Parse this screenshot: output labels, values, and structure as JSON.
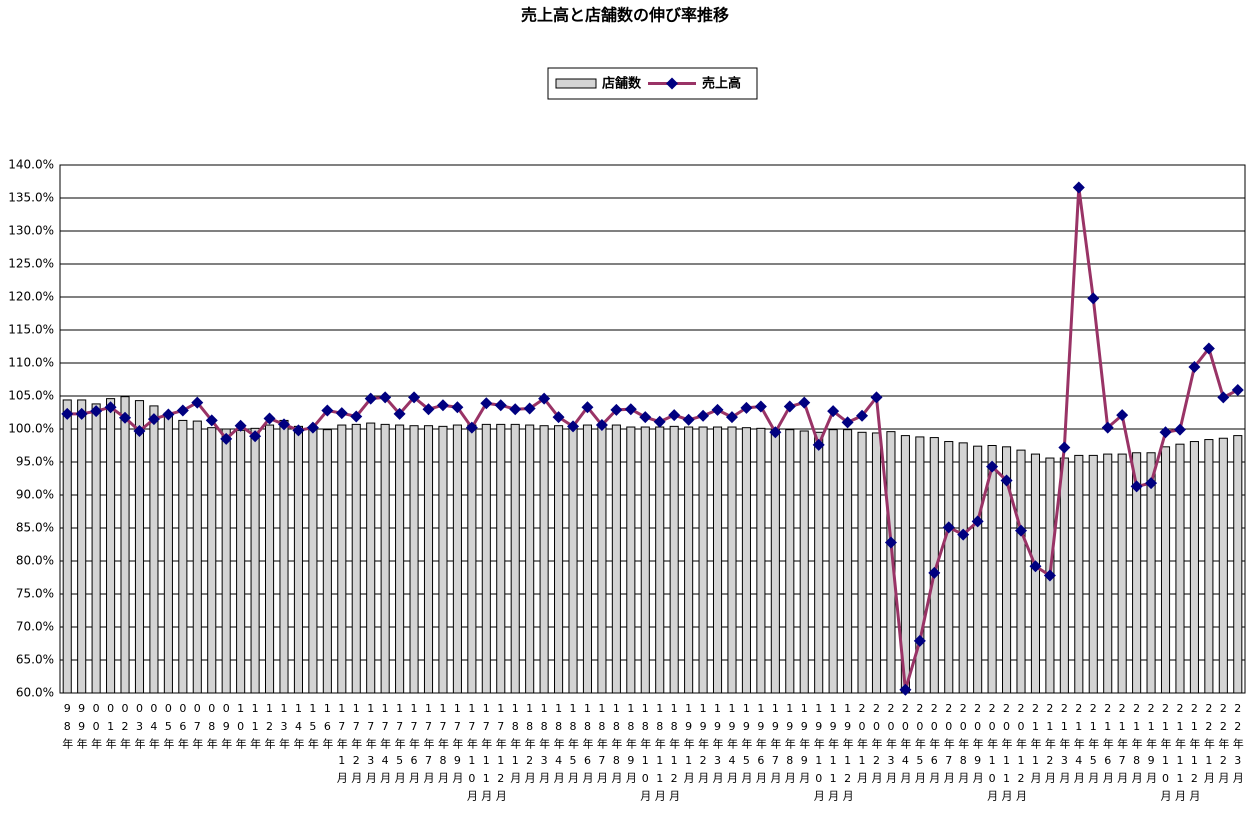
{
  "chart_data": {
    "type": "bar-line",
    "title": "売上高と店舗数の伸び率推移",
    "categories": [
      "98年",
      "99年",
      "00年",
      "01年",
      "02年",
      "03年",
      "04年",
      "05年",
      "06年",
      "07年",
      "08年",
      "09年",
      "10年",
      "11年",
      "12年",
      "13年",
      "14年",
      "15年",
      "16年",
      "17年1月",
      "17年2月",
      "17年3月",
      "17年4月",
      "17年5月",
      "17年6月",
      "17年7月",
      "17年8月",
      "17年9月",
      "17年10月",
      "17年11月",
      "17年12月",
      "18年1月",
      "18年2月",
      "18年3月",
      "18年4月",
      "18年5月",
      "18年6月",
      "18年7月",
      "18年8月",
      "18年9月",
      "18年10月",
      "18年11月",
      "18年12月",
      "19年1月",
      "19年2月",
      "19年3月",
      "19年4月",
      "19年5月",
      "19年6月",
      "19年7月",
      "19年8月",
      "19年9月",
      "19年10月",
      "19年11月",
      "19年12月",
      "20年1月",
      "20年2月",
      "20年3月",
      "20年4月",
      "20年5月",
      "20年6月",
      "20年7月",
      "20年8月",
      "20年9月",
      "20年10月",
      "20年11月",
      "20年12月",
      "21年1月",
      "21年2月",
      "21年3月",
      "21年4月",
      "21年5月",
      "21年6月",
      "21年7月",
      "21年8月",
      "21年9月",
      "21年10月",
      "21年11月",
      "21年12月",
      "22年1月",
      "22年2月",
      "22年3月"
    ],
    "series": [
      {
        "name": "店舗数",
        "type": "bar",
        "color": "#d4d4d4",
        "values": [
          104.4,
          104.4,
          103.8,
          104.6,
          104.9,
          104.3,
          103.5,
          102.4,
          101.3,
          101.2,
          100.2,
          100.0,
          99.8,
          100.1,
          100.6,
          101.3,
          100.4,
          100.2,
          99.9,
          100.6,
          100.7,
          100.9,
          100.7,
          100.6,
          100.5,
          100.5,
          100.4,
          100.6,
          100.6,
          100.7,
          100.7,
          100.7,
          100.6,
          100.5,
          100.5,
          100.5,
          100.6,
          100.6,
          100.6,
          100.3,
          100.3,
          100.3,
          100.4,
          100.3,
          100.3,
          100.3,
          100.3,
          100.2,
          100.1,
          100.0,
          99.9,
          99.7,
          99.5,
          99.9,
          99.9,
          99.5,
          99.4,
          99.6,
          99.0,
          98.8,
          98.7,
          98.1,
          97.9,
          97.4,
          97.5,
          97.3,
          96.8,
          96.2,
          95.6,
          95.6,
          96.0,
          96.0,
          96.2,
          96.2,
          96.4,
          96.4,
          97.3,
          97.7,
          98.1,
          98.4,
          98.6,
          99.0
        ]
      },
      {
        "name": "売上高",
        "type": "line",
        "color": "#993366",
        "marker_color": "#000080",
        "values": [
          102.3,
          102.3,
          102.7,
          103.3,
          101.7,
          99.7,
          101.5,
          102.2,
          102.8,
          104.0,
          101.3,
          98.5,
          100.5,
          98.9,
          101.6,
          100.7,
          99.8,
          100.2,
          102.8,
          102.4,
          101.9,
          104.6,
          104.8,
          102.3,
          104.8,
          103.0,
          103.6,
          103.3,
          100.2,
          103.9,
          103.6,
          103.0,
          103.1,
          104.6,
          101.8,
          100.4,
          103.3,
          100.6,
          102.9,
          103.0,
          101.8,
          101.1,
          102.1,
          101.4,
          102.0,
          102.9,
          101.8,
          103.2,
          103.4,
          99.5,
          103.4,
          104.0,
          97.6,
          102.7,
          101.0,
          102.0,
          104.8,
          82.8,
          60.5,
          67.9,
          78.2,
          85.1,
          84.0,
          86.0,
          94.3,
          92.2,
          84.6,
          79.2,
          77.8,
          97.2,
          136.6,
          119.8,
          100.2,
          102.1,
          91.3,
          91.8,
          99.5,
          99.9,
          109.4,
          112.2,
          104.8,
          105.9
        ]
      }
    ],
    "ylim": [
      60,
      140
    ],
    "yticks": [
      {
        "value": 60,
        "label": "60.0%"
      },
      {
        "value": 65,
        "label": "65.0%"
      },
      {
        "value": 70,
        "label": "70.0%"
      },
      {
        "value": 75,
        "label": "75.0%"
      },
      {
        "value": 80,
        "label": "80.0%"
      },
      {
        "value": 85,
        "label": "85.0%"
      },
      {
        "value": 90,
        "label": "90.0%"
      },
      {
        "value": 95,
        "label": "95.0%"
      },
      {
        "value": 100,
        "label": "100.0%"
      },
      {
        "value": 105,
        "label": "105.0%"
      },
      {
        "value": 110,
        "label": "110.0%"
      },
      {
        "value": 115,
        "label": "115.0%"
      },
      {
        "value": 120,
        "label": "120.0%"
      },
      {
        "value": 125,
        "label": "125.0%"
      },
      {
        "value": 130,
        "label": "130.0%"
      },
      {
        "value": 135,
        "label": "135.0%"
      },
      {
        "value": 140,
        "label": "140.0%"
      }
    ],
    "grid": true,
    "legend": "top"
  }
}
